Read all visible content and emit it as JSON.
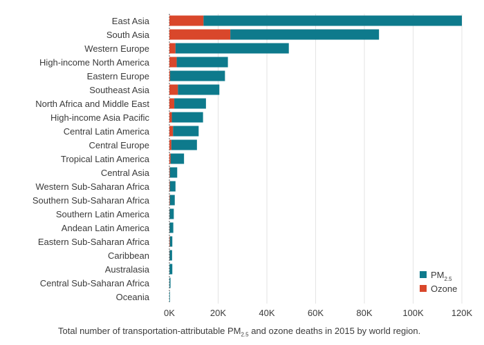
{
  "chart_data": {
    "type": "bar",
    "orientation": "horizontal",
    "stacked": true,
    "categories": [
      "East Asia",
      "South Asia",
      "Western Europe",
      "High-income North America",
      "Eastern Europe",
      "Southeast Asia",
      "North Africa and Middle East",
      "High-income Asia Pacific",
      "Central Latin America",
      "Central Europe",
      "Tropical Latin America",
      "Central Asia",
      "Western Sub-Saharan Africa",
      "Southern Sub-Saharan Africa",
      "Southern Latin America",
      "Andean Latin America",
      "Eastern Sub-Saharan Africa",
      "Caribbean",
      "Australasia",
      "Central Sub-Saharan Africa",
      "Oceania"
    ],
    "series": [
      {
        "name": "Ozone",
        "color": "#d9472b",
        "values": [
          14000,
          25000,
          2500,
          3000,
          300,
          3500,
          2000,
          1000,
          1500,
          800,
          500,
          200,
          200,
          200,
          100,
          100,
          200,
          100,
          50,
          50,
          10
        ]
      },
      {
        "name": "PM2.5",
        "color": "#0e7a8c",
        "values": [
          106000,
          61000,
          46500,
          21000,
          22500,
          17000,
          13000,
          12800,
          10500,
          10500,
          5500,
          3000,
          2300,
          2000,
          1700,
          1500,
          1000,
          1000,
          1150,
          400,
          200
        ]
      }
    ],
    "x_ticks": [
      "0K",
      "20K",
      "40K",
      "60K",
      "80K",
      "100K",
      "120K"
    ],
    "xlim": [
      0,
      120000
    ],
    "legend": {
      "position": "bottom-right",
      "pm_main": "PM",
      "pm_sub": "2.5",
      "ozone": "Ozone"
    },
    "caption": {
      "before": "Total number of transportation-attributable PM",
      "sub": "2.5",
      "after": " and ozone deaths in 2015 by world region."
    },
    "grid": true
  }
}
